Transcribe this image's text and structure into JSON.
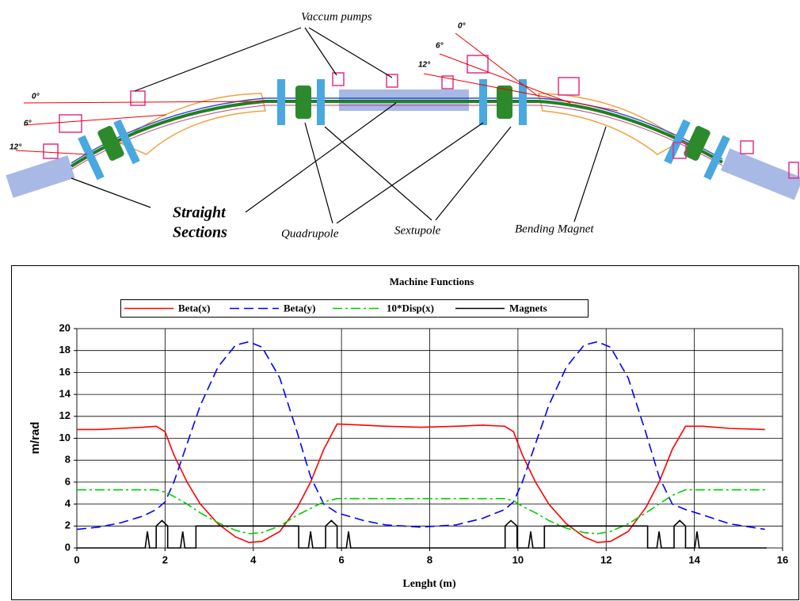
{
  "diagram": {
    "labels": {
      "vacuum_pumps": "Vaccum pumps",
      "straight_sections": [
        "Straight",
        "Sections"
      ],
      "quadrupole": "Quadrupole",
      "sextupole": "Sextupole",
      "bending_magnet": "Bending Magnet"
    },
    "angles_left": [
      "0°",
      "6°",
      "12°"
    ],
    "angles_right": [
      "0°",
      "6°",
      "12°"
    ]
  },
  "chart_data": {
    "type": "line",
    "title": "Machine Functions",
    "x_label": "Lenght (m)",
    "y_label": "m/rad",
    "xlim": [
      0,
      16
    ],
    "xticks": [
      0,
      2,
      4,
      6,
      8,
      10,
      12,
      14,
      16
    ],
    "ylim": [
      0,
      20
    ],
    "yticks": [
      0,
      2,
      4,
      6,
      8,
      10,
      12,
      14,
      16,
      18,
      20
    ],
    "grid": true,
    "legend": "top",
    "x": [
      0,
      0.5,
      1,
      1.5,
      1.8,
      2,
      2.2,
      2.5,
      2.8,
      3.2,
      3.6,
      3.9,
      4.2,
      4.6,
      5,
      5.3,
      5.6,
      5.9,
      6.5,
      7,
      7.8,
      8.6,
      9.2,
      9.7,
      9.9,
      10.1,
      10.4,
      10.7,
      11.1,
      11.5,
      11.8,
      12.1,
      12.5,
      12.9,
      13.2,
      13.5,
      13.8,
      14.2,
      14.8,
      15.6
    ],
    "series": [
      {
        "name": "Beta(x)",
        "color": "#ff0000",
        "dash": "solid",
        "values": [
          10.8,
          10.8,
          10.9,
          11,
          11.1,
          10.6,
          8.5,
          6,
          4,
          2.2,
          1,
          0.5,
          0.6,
          1.5,
          3.7,
          6,
          9,
          11.3,
          11.2,
          11.1,
          11,
          11.1,
          11.2,
          11.1,
          10.6,
          8.5,
          6,
          4,
          2.2,
          1,
          0.5,
          0.6,
          1.5,
          3.7,
          6,
          9,
          11.1,
          11.1,
          10.9,
          10.8
        ]
      },
      {
        "name": "Beta(y)",
        "color": "#0000ff",
        "dash": "dashed",
        "values": [
          1.7,
          1.9,
          2.3,
          2.9,
          3.5,
          4.2,
          6,
          9.5,
          13,
          16.5,
          18.5,
          18.8,
          18.3,
          15.5,
          10.5,
          6.5,
          4,
          3.2,
          2.5,
          2.1,
          1.9,
          2.1,
          2.7,
          3.5,
          4.2,
          6,
          9.5,
          13,
          16.5,
          18.5,
          18.8,
          18.3,
          15.5,
          10.5,
          6.5,
          4,
          3.5,
          3,
          2.2,
          1.7
        ]
      },
      {
        "name": "10*Disp(x)",
        "color": "#00cc00",
        "dash": "dashdot",
        "values": [
          5.3,
          5.3,
          5.3,
          5.3,
          5.3,
          5.1,
          4.7,
          4,
          3.2,
          2.3,
          1.6,
          1.3,
          1.4,
          2,
          3,
          3.6,
          4.2,
          4.5,
          4.5,
          4.5,
          4.5,
          4.5,
          4.5,
          4.5,
          4.3,
          3.8,
          3.2,
          2.5,
          1.8,
          1.4,
          1.3,
          1.5,
          2.2,
          3.2,
          4,
          4.8,
          5.3,
          5.3,
          5.3,
          5.3
        ]
      },
      {
        "name": "Magnets",
        "color": "#000000",
        "dash": "solid",
        "x": [
          0,
          1.55,
          1.6,
          1.65,
          1.8,
          1.8,
          1.93,
          2.06,
          2.06,
          2.35,
          2.4,
          2.45,
          2.7,
          2.7,
          5.03,
          5.03,
          5.25,
          5.3,
          5.35,
          5.64,
          5.64,
          5.77,
          5.9,
          5.9,
          6.11,
          6.16,
          6.21,
          9.71,
          9.71,
          9.84,
          9.98,
          9.98,
          10.24,
          10.29,
          10.34,
          10.6,
          10.6,
          12.94,
          12.94,
          13.15,
          13.2,
          13.25,
          13.54,
          13.54,
          13.67,
          13.8,
          13.8,
          14.01,
          14.06,
          14.11,
          15.64
        ],
        "values": [
          0,
          0,
          1.5,
          0,
          0,
          2,
          2.5,
          2,
          0,
          0,
          1.5,
          0,
          0,
          2,
          2,
          0,
          0,
          1.5,
          0,
          0,
          2,
          2.5,
          2,
          0,
          0,
          1.5,
          0,
          0,
          2,
          2.5,
          2,
          0,
          0,
          1.5,
          0,
          0,
          2,
          2,
          0,
          0,
          1.5,
          0,
          0,
          2,
          2.5,
          2,
          0,
          0,
          1.5,
          0,
          0
        ]
      }
    ]
  }
}
